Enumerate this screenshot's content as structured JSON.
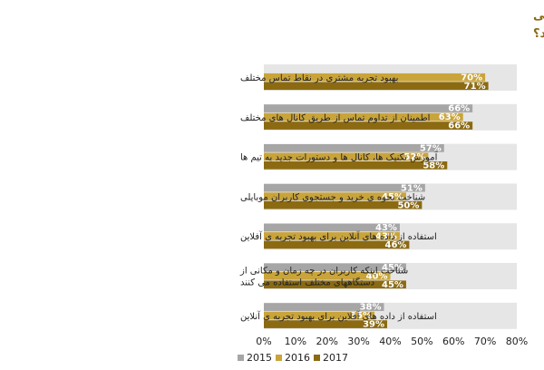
{
  "chart_data": {
    "type": "bar",
    "orientation": "horizontal",
    "title_lines": [
      "شرکت کنندگان در چه زمینه هایی و با چه نسبتی دیجیتال مارکتینگ را در سال آینده بسیار با اهمیت تلقی",
      "کرده اند؟"
    ],
    "categories": [
      [
        "بهبود تجربه مشتری در نقاط تماس مختلف"
      ],
      [
        "اطمینان از تداوم تماس از طریق کانال های مختلف"
      ],
      [
        "آموزش تکنیک ها، کانال ها و دستورات جدید به تیم ها"
      ],
      [
        "شناخت نحوه ی خرید و جستجوی کاربران موبایلی"
      ],
      [
        "استفاده از داده های آنلاین برای بهبود تجربه ی آفلاین"
      ],
      [
        "شناخت اینکه کاربران در چه زمان و مکانی از",
        "دستگاههای مختلف استفاده می کنند"
      ],
      [
        "استفاده از داده های آفلاین برای بهبود تجربه ی آنلاین"
      ]
    ],
    "series": [
      {
        "name": "2015",
        "color": "#a6a6a6",
        "values": [
          null,
          66,
          57,
          51,
          43,
          45,
          38
        ]
      },
      {
        "name": "2016",
        "color": "#c9a43a",
        "values": [
          70,
          63,
          52,
          45,
          43,
          40,
          35
        ]
      },
      {
        "name": "2017",
        "color": "#8b6a12",
        "values": [
          71,
          66,
          58,
          50,
          46,
          45,
          39
        ]
      }
    ],
    "xlim": [
      0,
      80
    ],
    "x_ticks": [
      "0%",
      "10%",
      "20%",
      "30%",
      "40%",
      "50%",
      "60%",
      "70%",
      "80%"
    ],
    "value_suffix": "%",
    "band_color": "#e6e6e6",
    "legend_position": "bottom-left"
  }
}
